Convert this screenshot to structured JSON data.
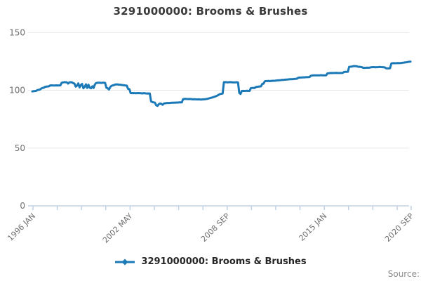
{
  "title": "3291000000: Brooms & Brushes",
  "legend": {
    "label": "3291000000: Brooms & Brushes"
  },
  "source": {
    "label": "Source:"
  },
  "colors": {
    "line": "#1b79b7",
    "grid": "#e8e8e8",
    "axis": "#c2d1e0",
    "tick_text": "#6e6e6e",
    "title_text": "#3a3a3a"
  },
  "chart_data": {
    "type": "line",
    "title": "3291000000: Brooms & Brushes",
    "xlabel": "",
    "ylabel": "",
    "x_unit": "month",
    "x_start": "1996 JAN",
    "x_end": "2020 SEP",
    "ylim": [
      0,
      150
    ],
    "y_ticks": [
      0,
      50,
      100,
      150
    ],
    "grid": "horizontal",
    "legend_position": "bottom-center",
    "x_minor_tick_every_months": 19,
    "x_tick_labels": [
      {
        "index": 0,
        "label": "1996 JAN"
      },
      {
        "index": 76,
        "label": "2002 MAY"
      },
      {
        "index": 152,
        "label": "2008 SEP"
      },
      {
        "index": 228,
        "label": "2015 JAN"
      },
      {
        "index": 296,
        "label": "2020 SEP"
      }
    ],
    "series": [
      {
        "name": "3291000000: Brooms & Brushes",
        "values": [
          99.0,
          99.2,
          99.3,
          99.5,
          100.2,
          100.4,
          100.6,
          101.5,
          102.0,
          102.2,
          103.0,
          103.2,
          103.3,
          103.4,
          104.2,
          104.3,
          104.2,
          104.1,
          104.2,
          104.3,
          104.2,
          104.2,
          104.3,
          106.5,
          106.8,
          107.0,
          107.0,
          106.9,
          105.8,
          106.8,
          107.0,
          106.9,
          106.2,
          105.8,
          103.2,
          104.0,
          106.0,
          102.5,
          104.5,
          105.5,
          101.8,
          103.0,
          105.2,
          102.0,
          104.8,
          102.2,
          101.8,
          103.5,
          102.0,
          105.0,
          106.3,
          106.5,
          106.6,
          106.5,
          106.4,
          106.5,
          106.6,
          106.4,
          102.2,
          101.8,
          100.6,
          102.8,
          103.8,
          104.3,
          104.5,
          105.0,
          105.1,
          105.0,
          104.9,
          104.8,
          104.6,
          104.5,
          104.3,
          104.2,
          104.0,
          101.2,
          101.0,
          97.6,
          97.5,
          97.6,
          97.5,
          97.4,
          97.5,
          97.6,
          97.5,
          97.4,
          97.3,
          97.5,
          97.4,
          97.3,
          97.2,
          97.3,
          97.2,
          90.4,
          89.8,
          89.5,
          89.3,
          87.0,
          86.5,
          88.0,
          88.6,
          88.3,
          87.5,
          88.6,
          88.8,
          88.9,
          89.0,
          89.0,
          89.1,
          89.2,
          89.2,
          89.3,
          89.3,
          89.4,
          89.4,
          89.5,
          89.5,
          89.5,
          92.3,
          92.5,
          92.6,
          92.5,
          92.4,
          92.5,
          92.4,
          92.3,
          92.2,
          92.3,
          92.2,
          92.1,
          92.2,
          92.1,
          92.0,
          92.1,
          92.2,
          92.3,
          92.4,
          92.6,
          92.9,
          93.2,
          93.5,
          93.8,
          94.2,
          94.6,
          95.0,
          95.5,
          96.2,
          96.8,
          97.0,
          97.2,
          107.0,
          107.1,
          107.0,
          106.9,
          107.0,
          107.1,
          107.0,
          106.9,
          106.8,
          106.9,
          107.0,
          106.8,
          97.8,
          96.8,
          99.4,
          99.5,
          99.4,
          99.5,
          99.6,
          99.5,
          99.4,
          101.8,
          102.0,
          102.1,
          102.0,
          102.8,
          103.0,
          103.2,
          103.3,
          103.4,
          105.5,
          105.8,
          107.8,
          108.0,
          108.0,
          108.1,
          108.0,
          108.1,
          108.2,
          108.2,
          108.3,
          108.5,
          108.6,
          108.7,
          108.8,
          108.9,
          109.0,
          109.1,
          109.2,
          109.3,
          109.4,
          109.5,
          109.6,
          109.6,
          109.7,
          109.8,
          109.9,
          110.0,
          110.8,
          111.0,
          111.0,
          111.1,
          111.2,
          111.2,
          111.3,
          111.3,
          111.4,
          111.5,
          112.6,
          112.8,
          112.9,
          112.9,
          113.0,
          113.0,
          112.9,
          113.0,
          113.1,
          113.0,
          112.9,
          113.0,
          113.0,
          114.6,
          114.8,
          114.9,
          115.0,
          114.9,
          115.0,
          115.0,
          115.1,
          115.0,
          114.9,
          115.0,
          115.0,
          115.1,
          115.8,
          116.0,
          116.0,
          116.1,
          120.3,
          120.4,
          120.5,
          120.8,
          121.0,
          120.9,
          120.8,
          120.4,
          120.3,
          120.2,
          120.0,
          119.5,
          119.4,
          119.5,
          119.6,
          119.5,
          119.6,
          119.9,
          120.0,
          120.1,
          120.0,
          119.9,
          120.0,
          120.1,
          120.2,
          120.1,
          120.0,
          119.9,
          119.8,
          119.0,
          118.9,
          119.0,
          119.1,
          123.2,
          123.4,
          123.5,
          123.4,
          123.5,
          123.6,
          123.5,
          123.6,
          123.7,
          123.9,
          124.0,
          124.2,
          124.3,
          124.5,
          124.7,
          124.8
        ]
      }
    ]
  }
}
